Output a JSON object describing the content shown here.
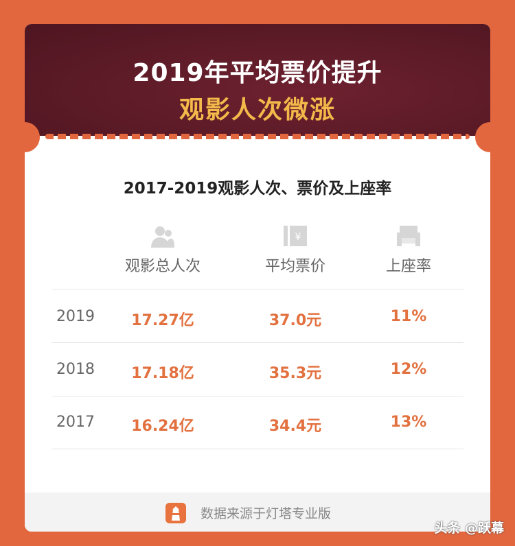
{
  "header": {
    "title_line1": "2019年平均票价提升",
    "title_line2": "观影人次微涨"
  },
  "subtitle": "2017-2019观影人次、票价及上座率",
  "table": {
    "columns": [
      {
        "label": "观影总人次",
        "icon": "audience-icon"
      },
      {
        "label": "平均票价",
        "icon": "ticket-icon"
      },
      {
        "label": "上座率",
        "icon": "seat-icon"
      }
    ],
    "rows": [
      {
        "year": "2019",
        "audience": "17.27亿",
        "price": "37.0元",
        "occupancy": "11%"
      },
      {
        "year": "2018",
        "audience": "17.18亿",
        "price": "35.3元",
        "occupancy": "12%"
      },
      {
        "year": "2017",
        "audience": "16.24亿",
        "price": "34.4元",
        "occupancy": "13%"
      }
    ]
  },
  "footer": {
    "source": "数据来源于灯塔专业版"
  },
  "watermark": "头条 @跃幕",
  "colors": {
    "background": "#e2673f",
    "header": "#5a1a26",
    "accent_gold": "#f3b94a",
    "value": "#e2713f"
  }
}
